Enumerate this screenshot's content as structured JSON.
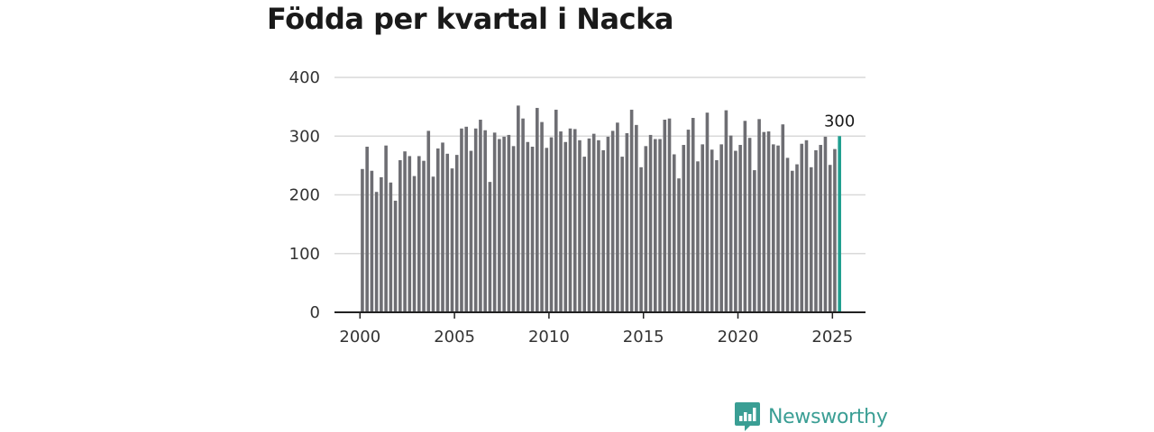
{
  "colors": {
    "bar": "#6e6e73",
    "highlight": "#1f9e8f",
    "grid": "#d9d9d9",
    "axis": "#222222",
    "brand": "#3a9e94"
  },
  "brand": {
    "name": "Newsworthy",
    "icon": "newsworthy-logo-icon"
  },
  "chart_data": {
    "type": "bar",
    "title": "Födda per kvartal i Nacka",
    "xlabel": "",
    "ylabel": "",
    "ylim": [
      0,
      400
    ],
    "yticks": [
      0,
      100,
      200,
      300,
      400
    ],
    "xticks": [
      2000,
      2005,
      2010,
      2015,
      2020,
      2025
    ],
    "xrange": [
      1998.65,
      2026.75
    ],
    "grid": true,
    "legend": "none",
    "x": [
      2000.125,
      2000.375,
      2000.625,
      2000.875,
      2001.125,
      2001.375,
      2001.625,
      2001.875,
      2002.125,
      2002.375,
      2002.625,
      2002.875,
      2003.125,
      2003.375,
      2003.625,
      2003.875,
      2004.125,
      2004.375,
      2004.625,
      2004.875,
      2005.125,
      2005.375,
      2005.625,
      2005.875,
      2006.125,
      2006.375,
      2006.625,
      2006.875,
      2007.125,
      2007.375,
      2007.625,
      2007.875,
      2008.125,
      2008.375,
      2008.625,
      2008.875,
      2009.125,
      2009.375,
      2009.625,
      2009.875,
      2010.125,
      2010.375,
      2010.625,
      2010.875,
      2011.125,
      2011.375,
      2011.625,
      2011.875,
      2012.125,
      2012.375,
      2012.625,
      2012.875,
      2013.125,
      2013.375,
      2013.625,
      2013.875,
      2014.125,
      2014.375,
      2014.625,
      2014.875,
      2015.125,
      2015.375,
      2015.625,
      2015.875,
      2016.125,
      2016.375,
      2016.625,
      2016.875,
      2017.125,
      2017.375,
      2017.625,
      2017.875,
      2018.125,
      2018.375,
      2018.625,
      2018.875,
      2019.125,
      2019.375,
      2019.625,
      2019.875,
      2020.125,
      2020.375,
      2020.625,
      2020.875,
      2021.125,
      2021.375,
      2021.625,
      2021.875,
      2022.125,
      2022.375,
      2022.625,
      2022.875,
      2023.125,
      2023.375,
      2023.625,
      2023.875,
      2024.125,
      2024.375,
      2024.625,
      2024.875,
      2025.125,
      2025.375
    ],
    "values": [
      244,
      282,
      241,
      205,
      230,
      284,
      221,
      190,
      259,
      274,
      266,
      232,
      266,
      258,
      309,
      231,
      279,
      289,
      270,
      245,
      268,
      313,
      316,
      275,
      313,
      328,
      310,
      222,
      306,
      295,
      299,
      302,
      283,
      352,
      330,
      290,
      282,
      348,
      324,
      280,
      298,
      345,
      308,
      290,
      313,
      312,
      293,
      265,
      296,
      304,
      293,
      276,
      299,
      309,
      323,
      265,
      305,
      345,
      319,
      247,
      283,
      302,
      295,
      295,
      328,
      330,
      269,
      228,
      285,
      311,
      331,
      257,
      286,
      340,
      277,
      259,
      286,
      344,
      301,
      275,
      285,
      326,
      297,
      242,
      329,
      307,
      308,
      286,
      284,
      320,
      263,
      241,
      252,
      287,
      293,
      247,
      276,
      285,
      299,
      251,
      278,
      300
    ],
    "annotations": [
      {
        "label": "300",
        "target": "last"
      }
    ]
  }
}
